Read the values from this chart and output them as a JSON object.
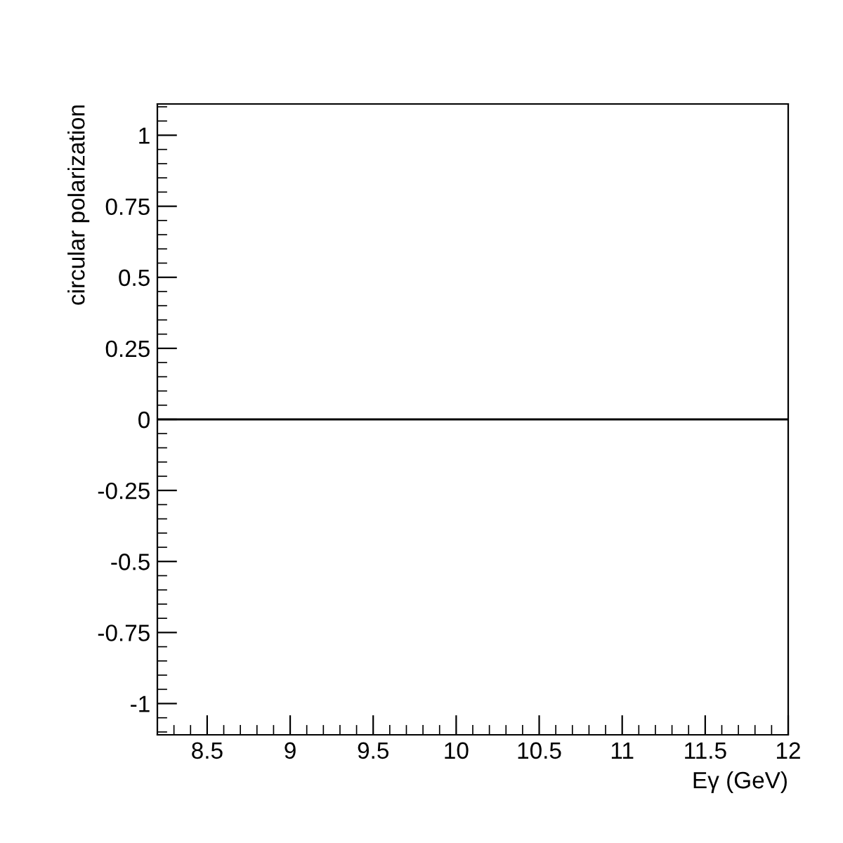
{
  "chart_data": {
    "type": "line",
    "xlabel": "Eγ (GeV)",
    "ylabel": "circular polarization",
    "xlim": [
      8.2,
      12
    ],
    "xticks": [
      8.5,
      9,
      9.5,
      10,
      10.5,
      11,
      11.5,
      12
    ],
    "ylim": [
      -1.11,
      1.11
    ],
    "yticks": [
      -1,
      -0.75,
      -0.5,
      -0.25,
      0,
      0.25,
      0.5,
      0.75,
      1
    ],
    "ref_lines": [
      {
        "axis": "y",
        "value": 0,
        "color": "#000000",
        "line_style": "solid"
      }
    ],
    "grid": false,
    "legend": false
  }
}
